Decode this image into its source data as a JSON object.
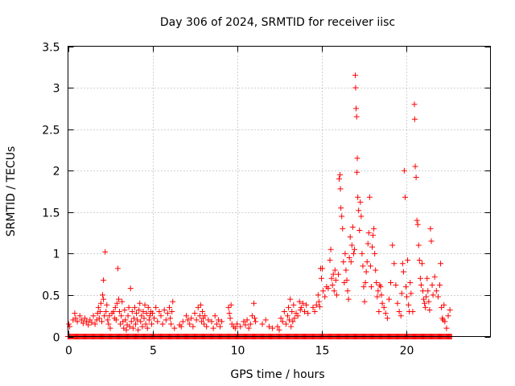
{
  "colors": {
    "series": "#ff0000",
    "grid": "#a0a0a0",
    "frame": "#000000"
  },
  "chart_data": {
    "type": "scatter",
    "title": "Day 306 of 2024, SRMTID for receiver iisc",
    "xlabel": "GPS time / hours",
    "ylabel": "SRMTID / TECUs",
    "xlim": [
      0,
      25
    ],
    "ylim": [
      0,
      3.5
    ],
    "grid": true,
    "marker": "+",
    "x_ticks": [
      0,
      5,
      10,
      15,
      20
    ],
    "x_tick_labels": [
      "0",
      "5",
      "10",
      "15",
      "20"
    ],
    "y_ticks": [
      0,
      0.5,
      1,
      1.5,
      2,
      2.5,
      3,
      3.5
    ],
    "y_tick_labels": [
      "0",
      "0.5",
      "1",
      "1.5",
      "2",
      "2.5",
      "3",
      "3.5"
    ],
    "series": [
      {
        "name": "SRMTID",
        "points": [
          [
            0.05,
            0.15
          ],
          [
            0.1,
            0.12
          ],
          [
            0.3,
            0.2
          ],
          [
            0.4,
            0.28
          ],
          [
            0.45,
            0.22
          ],
          [
            0.55,
            0.18
          ],
          [
            0.7,
            0.25
          ],
          [
            0.8,
            0.2
          ],
          [
            0.9,
            0.16
          ],
          [
            1.0,
            0.22
          ],
          [
            1.1,
            0.18
          ],
          [
            1.2,
            0.14
          ],
          [
            1.3,
            0.2
          ],
          [
            1.4,
            0.17
          ],
          [
            1.5,
            0.25
          ],
          [
            1.6,
            0.15
          ],
          [
            1.7,
            0.2
          ],
          [
            1.75,
            0.28
          ],
          [
            1.8,
            0.35
          ],
          [
            1.85,
            0.22
          ],
          [
            1.9,
            0.3
          ],
          [
            1.95,
            0.4
          ],
          [
            2.0,
            0.18
          ],
          [
            2.05,
            0.5
          ],
          [
            2.1,
            0.45
          ],
          [
            2.1,
            0.68
          ],
          [
            2.15,
            0.25
          ],
          [
            2.2,
            1.02
          ],
          [
            2.25,
            0.3
          ],
          [
            2.3,
            0.38
          ],
          [
            2.35,
            0.2
          ],
          [
            2.4,
            0.15
          ],
          [
            2.45,
            0.25
          ],
          [
            2.5,
            0.1
          ],
          [
            2.6,
            0.28
          ],
          [
            2.7,
            0.3
          ],
          [
            2.75,
            0.22
          ],
          [
            2.8,
            0.35
          ],
          [
            2.85,
            0.2
          ],
          [
            2.9,
            0.4
          ],
          [
            2.95,
            0.82
          ],
          [
            3.0,
            0.45
          ],
          [
            3.05,
            0.3
          ],
          [
            3.1,
            0.15
          ],
          [
            3.15,
            0.25
          ],
          [
            3.2,
            0.42
          ],
          [
            3.25,
            0.18
          ],
          [
            3.3,
            0.1
          ],
          [
            3.35,
            0.32
          ],
          [
            3.4,
            0.2
          ],
          [
            3.45,
            0.08
          ],
          [
            3.5,
            0.14
          ],
          [
            3.55,
            0.25
          ],
          [
            3.6,
            0.35
          ],
          [
            3.65,
            0.12
          ],
          [
            3.7,
            0.58
          ],
          [
            3.75,
            0.18
          ],
          [
            3.8,
            0.3
          ],
          [
            3.85,
            0.1
          ],
          [
            3.9,
            0.22
          ],
          [
            3.95,
            0.35
          ],
          [
            4.0,
            0.15
          ],
          [
            4.05,
            0.28
          ],
          [
            4.1,
            0.2
          ],
          [
            4.15,
            0.08
          ],
          [
            4.2,
            0.32
          ],
          [
            4.25,
            0.4
          ],
          [
            4.3,
            0.18
          ],
          [
            4.35,
            0.25
          ],
          [
            4.4,
            0.12
          ],
          [
            4.45,
            0.3
          ],
          [
            4.5,
            0.22
          ],
          [
            4.55,
            0.38
          ],
          [
            4.6,
            0.15
          ],
          [
            4.65,
            0.28
          ],
          [
            4.7,
            0.1
          ],
          [
            4.75,
            0.35
          ],
          [
            4.8,
            0.2
          ],
          [
            4.85,
            0.25
          ],
          [
            4.9,
            0.3
          ],
          [
            4.95,
            0.15
          ],
          [
            5.0,
            0.28
          ],
          [
            5.1,
            0.22
          ],
          [
            5.2,
            0.35
          ],
          [
            5.3,
            0.18
          ],
          [
            5.4,
            0.3
          ],
          [
            5.5,
            0.25
          ],
          [
            5.6,
            0.15
          ],
          [
            5.7,
            0.32
          ],
          [
            5.8,
            0.2
          ],
          [
            5.9,
            0.28
          ],
          [
            6.0,
            0.35
          ],
          [
            6.05,
            0.22
          ],
          [
            6.1,
            0.15
          ],
          [
            6.15,
            0.3
          ],
          [
            6.2,
            0.42
          ],
          [
            6.3,
            0.1
          ],
          [
            6.6,
            0.14
          ],
          [
            6.7,
            0.12
          ],
          [
            6.8,
            0.18
          ],
          [
            7.0,
            0.25
          ],
          [
            7.1,
            0.2
          ],
          [
            7.2,
            0.15
          ],
          [
            7.3,
            0.22
          ],
          [
            7.4,
            0.12
          ],
          [
            7.5,
            0.28
          ],
          [
            7.6,
            0.2
          ],
          [
            7.7,
            0.35
          ],
          [
            7.8,
            0.25
          ],
          [
            7.85,
            0.38
          ],
          [
            7.9,
            0.18
          ],
          [
            7.95,
            0.3
          ],
          [
            8.0,
            0.22
          ],
          [
            8.05,
            0.15
          ],
          [
            8.1,
            0.25
          ],
          [
            8.2,
            0.12
          ],
          [
            8.3,
            0.2
          ],
          [
            8.5,
            0.18
          ],
          [
            8.6,
            0.1
          ],
          [
            8.7,
            0.25
          ],
          [
            8.8,
            0.15
          ],
          [
            8.9,
            0.2
          ],
          [
            9.0,
            0.12
          ],
          [
            9.1,
            0.18
          ],
          [
            9.5,
            0.35
          ],
          [
            9.55,
            0.28
          ],
          [
            9.6,
            0.22
          ],
          [
            9.65,
            0.38
          ],
          [
            9.7,
            0.15
          ],
          [
            9.8,
            0.12
          ],
          [
            9.9,
            0.1
          ],
          [
            10.0,
            0.15
          ],
          [
            10.2,
            0.12
          ],
          [
            10.4,
            0.18
          ],
          [
            10.5,
            0.14
          ],
          [
            10.6,
            0.2
          ],
          [
            10.7,
            0.1
          ],
          [
            10.8,
            0.15
          ],
          [
            10.9,
            0.25
          ],
          [
            11.0,
            0.4
          ],
          [
            11.05,
            0.22
          ],
          [
            11.1,
            0.18
          ],
          [
            11.5,
            0.15
          ],
          [
            11.7,
            0.2
          ],
          [
            11.9,
            0.12
          ],
          [
            12.1,
            0.1
          ],
          [
            12.4,
            0.12
          ],
          [
            12.5,
            0.08
          ],
          [
            12.6,
            0.22
          ],
          [
            12.7,
            0.18
          ],
          [
            12.8,
            0.3
          ],
          [
            12.9,
            0.15
          ],
          [
            13.0,
            0.25
          ],
          [
            13.05,
            0.35
          ],
          [
            13.1,
            0.2
          ],
          [
            13.15,
            0.45
          ],
          [
            13.2,
            0.12
          ],
          [
            13.25,
            0.3
          ],
          [
            13.3,
            0.18
          ],
          [
            13.35,
            0.38
          ],
          [
            13.4,
            0.22
          ],
          [
            13.5,
            0.28
          ],
          [
            13.6,
            0.25
          ],
          [
            13.7,
            0.42
          ],
          [
            13.75,
            0.32
          ],
          [
            13.8,
            0.35
          ],
          [
            13.9,
            0.4
          ],
          [
            14.0,
            0.3
          ],
          [
            14.1,
            0.38
          ],
          [
            14.2,
            0.28
          ],
          [
            14.5,
            0.35
          ],
          [
            14.6,
            0.3
          ],
          [
            14.7,
            0.38
          ],
          [
            14.8,
            0.5
          ],
          [
            14.85,
            0.42
          ],
          [
            14.9,
            0.36
          ],
          [
            14.95,
            0.82
          ],
          [
            15.0,
            0.7
          ],
          [
            15.05,
            0.82
          ],
          [
            15.1,
            0.55
          ],
          [
            15.2,
            0.48
          ],
          [
            15.3,
            0.6
          ],
          [
            15.4,
            0.58
          ],
          [
            15.5,
            0.92
          ],
          [
            15.55,
            1.05
          ],
          [
            15.6,
            0.7
          ],
          [
            15.65,
            0.62
          ],
          [
            15.7,
            0.75
          ],
          [
            15.75,
            0.55
          ],
          [
            15.8,
            0.8
          ],
          [
            15.85,
            0.68
          ],
          [
            15.9,
            0.5
          ],
          [
            16.0,
            0.75
          ],
          [
            16.05,
            1.9
          ],
          [
            16.1,
            1.95
          ],
          [
            16.12,
            1.78
          ],
          [
            16.15,
            1.55
          ],
          [
            16.2,
            1.45
          ],
          [
            16.25,
            1.3
          ],
          [
            16.3,
            0.9
          ],
          [
            16.35,
            0.65
          ],
          [
            16.4,
            1.0
          ],
          [
            16.45,
            0.8
          ],
          [
            16.5,
            0.68
          ],
          [
            16.55,
            0.55
          ],
          [
            16.6,
            0.45
          ],
          [
            16.65,
            0.95
          ],
          [
            16.7,
            1.2
          ],
          [
            16.75,
            0.9
          ],
          [
            16.8,
            1.1
          ],
          [
            16.85,
            1.32
          ],
          [
            16.9,
            1.0
          ],
          [
            16.95,
            1.05
          ],
          [
            17.0,
            3.15
          ],
          [
            17.02,
            3.0
          ],
          [
            17.05,
            2.75
          ],
          [
            17.08,
            2.65
          ],
          [
            17.1,
            1.98
          ],
          [
            17.12,
            2.15
          ],
          [
            17.15,
            1.68
          ],
          [
            17.2,
            1.52
          ],
          [
            17.25,
            1.28
          ],
          [
            17.3,
            1.62
          ],
          [
            17.35,
            1.45
          ],
          [
            17.4,
            1.0
          ],
          [
            17.45,
            0.85
          ],
          [
            17.5,
            0.6
          ],
          [
            17.55,
            0.42
          ],
          [
            17.6,
            0.65
          ],
          [
            17.65,
            0.78
          ],
          [
            17.7,
            0.9
          ],
          [
            17.75,
            1.12
          ],
          [
            17.8,
            1.25
          ],
          [
            17.85,
            1.68
          ],
          [
            17.9,
            0.85
          ],
          [
            17.95,
            0.6
          ],
          [
            18.0,
            1.08
          ],
          [
            18.05,
            1.22
          ],
          [
            18.1,
            1.3
          ],
          [
            18.15,
            1.0
          ],
          [
            18.2,
            0.8
          ],
          [
            18.25,
            0.65
          ],
          [
            18.3,
            0.48
          ],
          [
            18.35,
            0.55
          ],
          [
            18.4,
            0.3
          ],
          [
            18.45,
            0.62
          ],
          [
            18.5,
            0.6
          ],
          [
            18.55,
            0.5
          ],
          [
            18.6,
            0.4
          ],
          [
            18.7,
            0.35
          ],
          [
            18.8,
            0.28
          ],
          [
            18.9,
            0.22
          ],
          [
            19.0,
            0.45
          ],
          [
            19.1,
            0.65
          ],
          [
            19.2,
            1.1
          ],
          [
            19.3,
            0.88
          ],
          [
            19.4,
            0.62
          ],
          [
            19.5,
            0.4
          ],
          [
            19.6,
            0.3
          ],
          [
            19.7,
            0.25
          ],
          [
            19.75,
            0.52
          ],
          [
            19.8,
            0.88
          ],
          [
            19.85,
            0.78
          ],
          [
            19.9,
            2.0
          ],
          [
            19.95,
            1.68
          ],
          [
            20.0,
            0.6
          ],
          [
            20.05,
            0.48
          ],
          [
            20.1,
            0.92
          ],
          [
            20.15,
            0.38
          ],
          [
            20.2,
            0.3
          ],
          [
            20.25,
            0.65
          ],
          [
            20.3,
            0.52
          ],
          [
            20.4,
            0.3
          ],
          [
            20.5,
            2.8
          ],
          [
            20.52,
            2.62
          ],
          [
            20.55,
            2.05
          ],
          [
            20.6,
            1.92
          ],
          [
            20.65,
            1.4
          ],
          [
            20.7,
            1.35
          ],
          [
            20.75,
            1.1
          ],
          [
            20.8,
            0.92
          ],
          [
            20.85,
            0.7
          ],
          [
            20.9,
            0.62
          ],
          [
            20.95,
            0.88
          ],
          [
            21.0,
            0.55
          ],
          [
            21.05,
            0.45
          ],
          [
            21.1,
            0.4
          ],
          [
            21.15,
            0.35
          ],
          [
            21.2,
            0.48
          ],
          [
            21.25,
            0.7
          ],
          [
            21.3,
            0.55
          ],
          [
            21.35,
            0.42
          ],
          [
            21.4,
            0.32
          ],
          [
            21.45,
            1.3
          ],
          [
            21.5,
            1.15
          ],
          [
            21.55,
            0.62
          ],
          [
            21.6,
            0.5
          ],
          [
            21.7,
            0.72
          ],
          [
            21.8,
            0.55
          ],
          [
            21.9,
            0.48
          ],
          [
            22.0,
            0.62
          ],
          [
            22.05,
            0.88
          ],
          [
            22.1,
            0.35
          ],
          [
            22.15,
            0.22
          ],
          [
            22.2,
            0.2
          ],
          [
            22.25,
            0.38
          ],
          [
            22.3,
            0.18
          ],
          [
            22.4,
            0.1
          ],
          [
            22.5,
            0.25
          ],
          [
            22.6,
            0.32
          ]
        ],
        "zero_baseline_x_range": [
          0,
          22.7
        ]
      }
    ]
  }
}
